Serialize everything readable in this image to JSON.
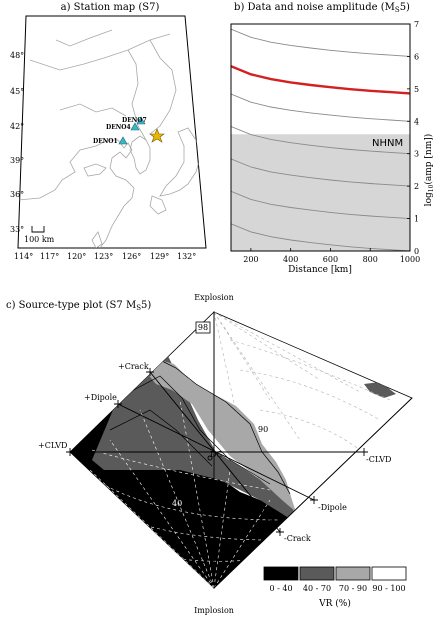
{
  "map": {
    "title": "a) Station map (S7)",
    "lat_ticks": [
      "48°",
      "45°",
      "42°",
      "39°",
      "36°",
      "33°"
    ],
    "lon_ticks": [
      "114°",
      "117°",
      "120°",
      "123°",
      "126°",
      "129°",
      "132°"
    ],
    "scale_label": "100 km",
    "stations": [
      "DENO7",
      "DENO4",
      "DENO1"
    ],
    "station_color": "#3cb4c8",
    "event_color": "#e8b800"
  },
  "amp": {
    "title": "b) Data and noise amplitude (MS5)",
    "xlabel": "Distance [km]",
    "ylabel": "log10(amp [nm])",
    "band_label": "NHNM",
    "highlight_color": "#d42020"
  },
  "src": {
    "title": "c) Source-type plot (S7 MS5)",
    "top_label": "Explosion",
    "bottom_label": "Implosion",
    "labels": {
      "plus_crack": "+Crack",
      "plus_dipole": "+Dipole",
      "plus_clvd": "+CLVD",
      "minus_clvd": "-CLVD",
      "minus_dipole": "-Dipole",
      "minus_crack": "-Crack",
      "dc": "DC",
      "best": "98",
      "c90": "90",
      "c40": "40"
    },
    "legend_title": "VR (%)",
    "legend": [
      {
        "label": "0 - 40",
        "color": "#000000"
      },
      {
        "label": "40 - 70",
        "color": "#5a5a5a"
      },
      {
        "label": "70 - 90",
        "color": "#a8a8a8"
      },
      {
        "label": "90 - 100",
        "color": "#ffffff"
      }
    ]
  },
  "chart_data": {
    "type": "line",
    "title": "b) Data and noise amplitude (MS5)",
    "xlabel": "Distance [km]",
    "ylabel": "log10(amp [nm])",
    "xlim": [
      100,
      1000
    ],
    "ylim": [
      0,
      7
    ],
    "x_ticks": [
      200,
      400,
      600,
      800,
      1000
    ],
    "y_ticks": [
      0,
      1,
      2,
      3,
      4,
      5,
      6,
      7
    ],
    "band": {
      "label": "NHNM",
      "y_max": 3.6
    },
    "x": [
      100,
      200,
      300,
      400,
      500,
      600,
      700,
      800,
      900,
      1000
    ],
    "series": [
      {
        "values": [
          6.84,
          6.59,
          6.44,
          6.34,
          6.26,
          6.19,
          6.13,
          6.08,
          6.04,
          6.0
        ]
      },
      {
        "values": [
          5.7,
          5.45,
          5.3,
          5.2,
          5.12,
          5.05,
          4.99,
          4.94,
          4.9,
          4.86
        ],
        "highlight": true
      },
      {
        "values": [
          4.84,
          4.59,
          4.44,
          4.34,
          4.26,
          4.19,
          4.13,
          4.08,
          4.04,
          4.0
        ]
      },
      {
        "values": [
          3.84,
          3.59,
          3.44,
          3.34,
          3.26,
          3.19,
          3.13,
          3.08,
          3.04,
          3.0
        ]
      },
      {
        "values": [
          2.84,
          2.59,
          2.44,
          2.34,
          2.26,
          2.19,
          2.13,
          2.08,
          2.04,
          2.0
        ]
      },
      {
        "values": [
          1.84,
          1.59,
          1.44,
          1.34,
          1.26,
          1.19,
          1.13,
          1.08,
          1.04,
          1.0
        ]
      },
      {
        "values": [
          0.84,
          0.59,
          0.44,
          0.34,
          0.26,
          0.19,
          0.13,
          0.08,
          0.04,
          0.0
        ]
      }
    ]
  }
}
